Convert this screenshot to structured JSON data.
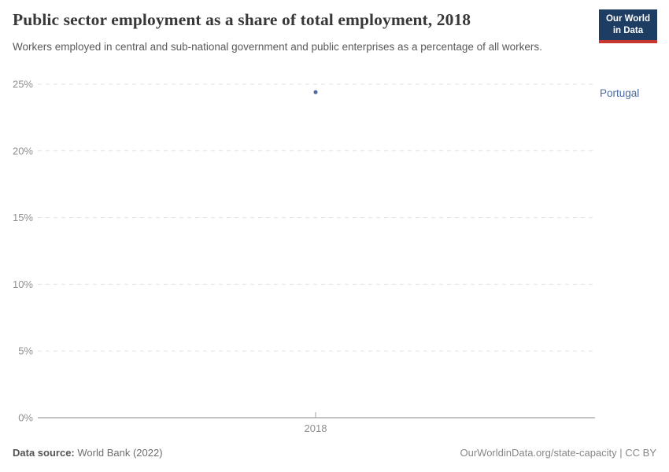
{
  "header": {
    "title": "Public sector employment as a share of total employment, 2018",
    "subtitle": "Workers employed in central and sub-national government and public enterprises as a percentage of all workers.",
    "logo": {
      "line1": "Our World",
      "line2": "in Data",
      "bg_color": "#1d3d63",
      "bar_color": "#c7362f"
    }
  },
  "chart_data": {
    "type": "scatter",
    "title": "Public sector employment as a share of total employment, 2018",
    "xlabel": "",
    "ylabel": "",
    "x": [
      2018
    ],
    "series": [
      {
        "name": "Portugal",
        "values": [
          24.4
        ],
        "color": "#4c6a9c"
      }
    ],
    "entity_label": "Portugal",
    "y_ticks": [
      {
        "value": 0,
        "label": "0%"
      },
      {
        "value": 5,
        "label": "5%"
      },
      {
        "value": 10,
        "label": "10%"
      },
      {
        "value": 15,
        "label": "15%"
      },
      {
        "value": 20,
        "label": "20%"
      },
      {
        "value": 25,
        "label": "25%"
      }
    ],
    "x_ticks": [
      {
        "value": 2018,
        "label": "2018"
      }
    ],
    "ylim": [
      0,
      25
    ],
    "grid": "horizontal-dashed",
    "legend_position": "right-of-point",
    "colors": {
      "axis_text": "#8f8f8f",
      "gridline": "#e2e2e2",
      "axis_line": "#a1a1a1"
    }
  },
  "footer": {
    "source_label": "Data source:",
    "source_value": "World Bank (2022)",
    "credit": "OurWorldinData.org/state-capacity | CC BY"
  }
}
